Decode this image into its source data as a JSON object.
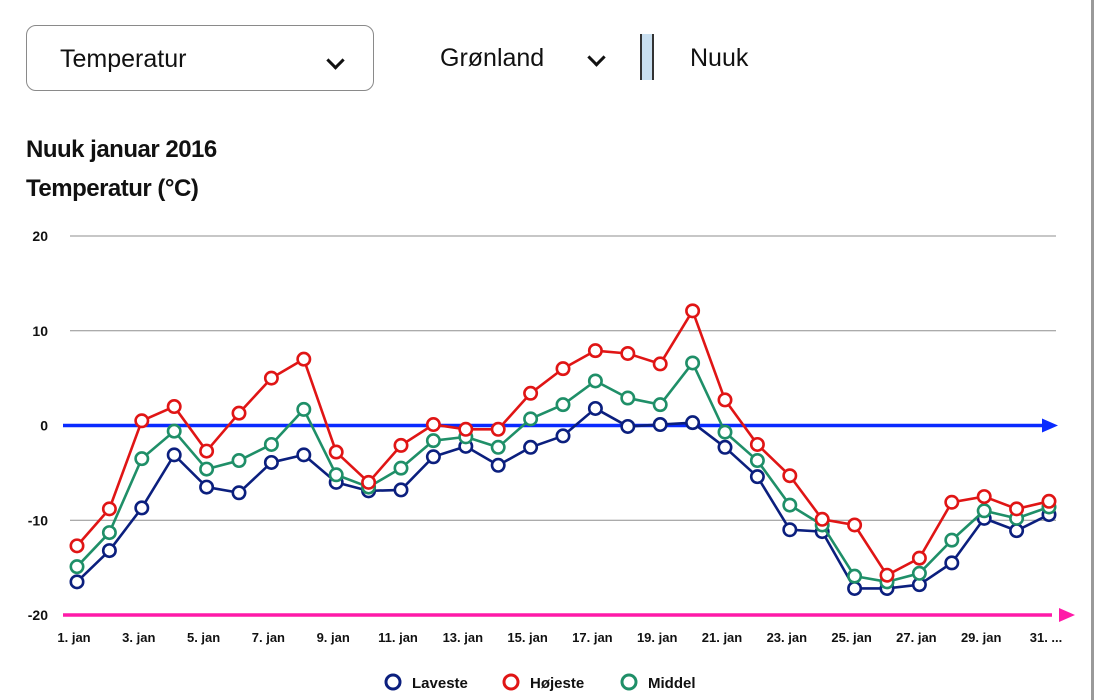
{
  "controls": {
    "parameter_select": {
      "value": "Temperatur",
      "icon": "chevron-down-icon"
    },
    "country_select": {
      "value": "Grønland",
      "icon": "chevron-down-icon"
    },
    "city": "Nuuk"
  },
  "chart_data": {
    "type": "line",
    "title": "Nuuk januar 2016",
    "ylabel": "Temperatur (°C)",
    "xlabel": "",
    "ylim": [
      -20,
      20
    ],
    "yticks": [
      20,
      10,
      0,
      -10,
      -20
    ],
    "grid": true,
    "legend_position": "bottom",
    "x": [
      "1. jan",
      "2. jan",
      "3. jan",
      "4. jan",
      "5. jan",
      "6. jan",
      "7. jan",
      "8. jan",
      "9. jan",
      "10. jan",
      "11. jan",
      "12. jan",
      "13. jan",
      "14. jan",
      "15. jan",
      "16. jan",
      "17. jan",
      "18. jan",
      "19. jan",
      "20. jan",
      "21. jan",
      "22. jan",
      "23. jan",
      "24. jan",
      "25. jan",
      "26. jan",
      "27. jan",
      "28. jan",
      "29. jan",
      "30. jan",
      "31. jan"
    ],
    "xtick_labels": [
      "1. jan",
      "3. jan",
      "5. jan",
      "7. jan",
      "9. jan",
      "11. jan",
      "13. jan",
      "15. jan",
      "17. jan",
      "19. jan",
      "21. jan",
      "23. jan",
      "25. jan",
      "27. jan",
      "29. jan",
      "31. ..."
    ],
    "series": [
      {
        "name": "Laveste",
        "color": "#0b1f7e",
        "values": [
          -16.5,
          -13.2,
          -8.7,
          -3.1,
          -6.5,
          -7.1,
          -3.9,
          -3.1,
          -6.0,
          -6.9,
          -6.8,
          -3.3,
          -2.2,
          -4.2,
          -2.3,
          -1.1,
          1.8,
          -0.1,
          0.1,
          0.3,
          -2.3,
          -5.4,
          -11.0,
          -11.2,
          -17.2,
          -17.2,
          -16.8,
          -14.5,
          -9.8,
          -11.1,
          -9.4
        ]
      },
      {
        "name": "Højeste",
        "color": "#e01515",
        "values": [
          -12.7,
          -8.8,
          0.5,
          2.0,
          -2.7,
          1.3,
          5.0,
          7.0,
          -2.8,
          -6.0,
          -2.1,
          0.1,
          -0.4,
          -0.4,
          3.4,
          6.0,
          7.9,
          7.6,
          6.5,
          12.1,
          2.7,
          -2.0,
          -5.3,
          -9.9,
          -10.5,
          -15.8,
          -14.0,
          -8.1,
          -7.5,
          -8.8,
          -8.0
        ]
      },
      {
        "name": "Middel",
        "color": "#1f8f68",
        "values": [
          -14.9,
          -11.3,
          -3.5,
          -0.6,
          -4.6,
          -3.7,
          -2.0,
          1.7,
          -5.2,
          -6.5,
          -4.5,
          -1.6,
          -1.2,
          -2.3,
          0.7,
          2.2,
          4.7,
          2.9,
          2.2,
          6.6,
          -0.7,
          -3.7,
          -8.4,
          -10.5,
          -15.9,
          -16.5,
          -15.6,
          -12.1,
          -9.0,
          -9.8,
          -8.6
        ]
      }
    ],
    "reference_lines": [
      {
        "value": 0,
        "color": "#0a2bff"
      },
      {
        "value": -20,
        "color": "#ff1aa8"
      }
    ]
  }
}
